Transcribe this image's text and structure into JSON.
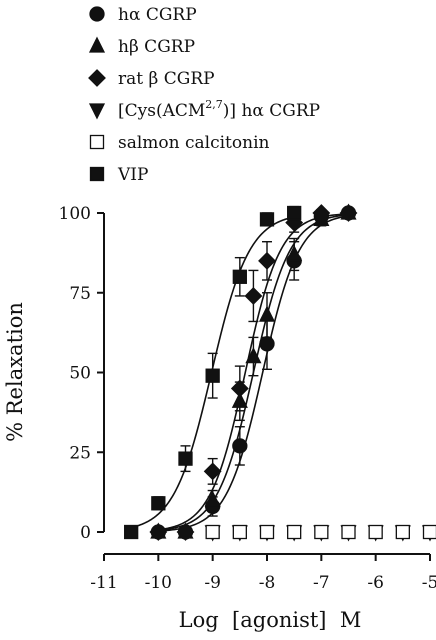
{
  "chart_data": {
    "type": "scatter",
    "xlabel": "Log  [agonist]  M",
    "ylabel": "% Relaxation",
    "xlim": [
      -11,
      -5
    ],
    "ylim": [
      0,
      100
    ],
    "x_ticks": [
      "-11",
      "-10",
      "-9",
      "-8",
      "-7",
      "-6",
      "-5"
    ],
    "y_ticks": [
      "0",
      "25",
      "50",
      "75",
      "100"
    ],
    "legend_position": "top-left",
    "series": [
      {
        "name": "hα CGRP",
        "marker": "circle",
        "fill": "#111111",
        "x": [
          -10,
          -9.5,
          -9,
          -8.5,
          -8,
          -7.5,
          -7,
          -6.5
        ],
        "y": [
          0,
          0,
          8,
          27,
          59,
          85,
          99,
          100
        ],
        "err": [
          0,
          0,
          3,
          6,
          8,
          6,
          2,
          1
        ],
        "curve": {
          "bottom": 0,
          "top": 100,
          "logEC50": -8.08,
          "hill": 1.3
        }
      },
      {
        "name": "hβ CGRP",
        "marker": "triangle-up",
        "fill": "#111111",
        "x": [
          -10,
          -9.5,
          -9,
          -8.5,
          -8.25,
          -8,
          -7.5,
          -7,
          -6.5
        ],
        "y": [
          0,
          0,
          10,
          41,
          55,
          68,
          87,
          98,
          100
        ],
        "err": [
          0,
          0,
          3,
          6,
          6,
          7,
          5,
          2,
          1
        ],
        "curve": {
          "bottom": 0,
          "top": 100,
          "logEC50": -8.25,
          "hill": 1.3
        }
      },
      {
        "name": "rat β CGRP",
        "marker": "diamond",
        "fill": "#111111",
        "x": [
          -10,
          -9.5,
          -9,
          -8.5,
          -8.25,
          -8,
          -7.5,
          -7,
          -6.5
        ],
        "y": [
          0,
          0,
          19,
          45,
          74,
          85,
          97,
          100,
          100
        ],
        "err": [
          0,
          0,
          4,
          7,
          8,
          6,
          3,
          1,
          1
        ],
        "curve": {
          "bottom": 0,
          "top": 100,
          "logEC50": -8.4,
          "hill": 1.35
        }
      },
      {
        "name": "[Cys(ACM2,7)] hα CGRP",
        "marker": "triangle-down",
        "fill": "#111111",
        "x": [
          -9,
          -8.5,
          -8,
          -7.5,
          -7,
          -6.5,
          -6,
          -5.5,
          -5
        ],
        "y": [
          0,
          0,
          0,
          0,
          0,
          0,
          0,
          0,
          0
        ],
        "err": [
          0,
          0,
          0,
          0,
          0,
          0,
          0,
          0,
          0
        ],
        "curve": null
      },
      {
        "name": "salmon calcitonin",
        "marker": "square",
        "fill": "#ffffff",
        "x": [
          -9,
          -8.5,
          -8,
          -7.5,
          -7,
          -6.5,
          -6,
          -5.5,
          -5
        ],
        "y": [
          0,
          0,
          0,
          0,
          0,
          0,
          0,
          0,
          0
        ],
        "err": [
          0,
          0,
          0,
          0,
          0,
          0,
          0,
          0,
          0
        ],
        "curve": null
      },
      {
        "name": "VIP",
        "marker": "square",
        "fill": "#111111",
        "x": [
          -10.5,
          -10,
          -9.5,
          -9,
          -8.5,
          -8,
          -7.5
        ],
        "y": [
          0,
          9,
          23,
          49,
          80,
          98,
          100
        ],
        "err": [
          0,
          2,
          4,
          7,
          6,
          2,
          2
        ],
        "curve": {
          "bottom": 0,
          "top": 100,
          "logEC50": -9.02,
          "hill": 1.25
        }
      }
    ]
  },
  "legend": [
    {
      "marker": "circle",
      "fill": "#111111",
      "label": "hα CGRP"
    },
    {
      "marker": "triangle-up",
      "fill": "#111111",
      "label": "hβ CGRP"
    },
    {
      "marker": "diamond",
      "fill": "#111111",
      "label": "rat β CGRP"
    },
    {
      "marker": "triangle-down",
      "fill": "#111111",
      "label_prefix": "[Cys(ACM",
      "label_sup": "2,7",
      "label_suffix": ")] hα CGRP"
    },
    {
      "marker": "square",
      "fill": "#ffffff",
      "label": "salmon calcitonin"
    },
    {
      "marker": "square",
      "fill": "#111111",
      "label": "VIP"
    }
  ]
}
